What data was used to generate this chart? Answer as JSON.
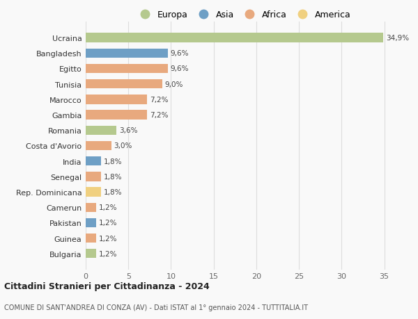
{
  "categories": [
    "Bulgaria",
    "Guinea",
    "Pakistan",
    "Camerun",
    "Rep. Dominicana",
    "Senegal",
    "India",
    "Costa d'Avorio",
    "Romania",
    "Gambia",
    "Marocco",
    "Tunisia",
    "Egitto",
    "Bangladesh",
    "Ucraina"
  ],
  "values": [
    1.2,
    1.2,
    1.2,
    1.2,
    1.8,
    1.8,
    1.8,
    3.0,
    3.6,
    7.2,
    7.2,
    9.0,
    9.6,
    9.6,
    34.9
  ],
  "labels": [
    "1,2%",
    "1,2%",
    "1,2%",
    "1,2%",
    "1,8%",
    "1,8%",
    "1,8%",
    "3,0%",
    "3,6%",
    "7,2%",
    "7,2%",
    "9,0%",
    "9,6%",
    "9,6%",
    "34,9%"
  ],
  "continents": [
    "Europa",
    "Africa",
    "Asia",
    "Africa",
    "America",
    "Africa",
    "Asia",
    "Africa",
    "Europa",
    "Africa",
    "Africa",
    "Africa",
    "Africa",
    "Asia",
    "Europa"
  ],
  "continent_colors": {
    "Europa": "#b5c98e",
    "Asia": "#6e9fc5",
    "Africa": "#e8a97e",
    "America": "#f0d080"
  },
  "legend_order": [
    "Europa",
    "Asia",
    "Africa",
    "America"
  ],
  "xlim": [
    0,
    37
  ],
  "xticks": [
    0,
    5,
    10,
    15,
    20,
    25,
    30,
    35
  ],
  "title": "Cittadini Stranieri per Cittadinanza - 2024",
  "subtitle": "COMUNE DI SANT'ANDREA DI CONZA (AV) - Dati ISTAT al 1° gennaio 2024 - TUTTITALIA.IT",
  "bg_color": "#f9f9f9",
  "grid_color": "#dddddd",
  "bar_height": 0.6
}
